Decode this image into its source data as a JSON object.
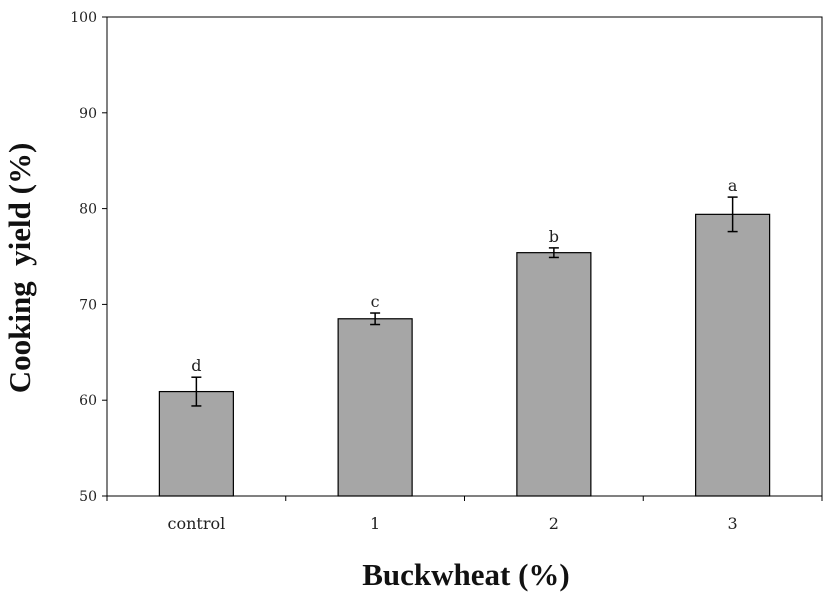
{
  "chart_data": {
    "type": "bar",
    "categories": [
      "control",
      "1",
      "2",
      "3"
    ],
    "values": [
      60.9,
      68.5,
      75.4,
      79.4
    ],
    "errors": [
      1.5,
      0.6,
      0.5,
      1.8
    ],
    "significance": [
      "d",
      "c",
      "b",
      "a"
    ],
    "xlabel": "Buckwheat (%)",
    "ylabel": "Cooking  yield (%)",
    "ylim": [
      50,
      100
    ],
    "yticks": [
      50,
      60,
      70,
      80,
      90,
      100
    ],
    "grid": false,
    "legend": "none",
    "colors": {
      "bar_fill": "#a6a6a6",
      "bar_stroke": "#000000",
      "axis": "#000000"
    }
  }
}
